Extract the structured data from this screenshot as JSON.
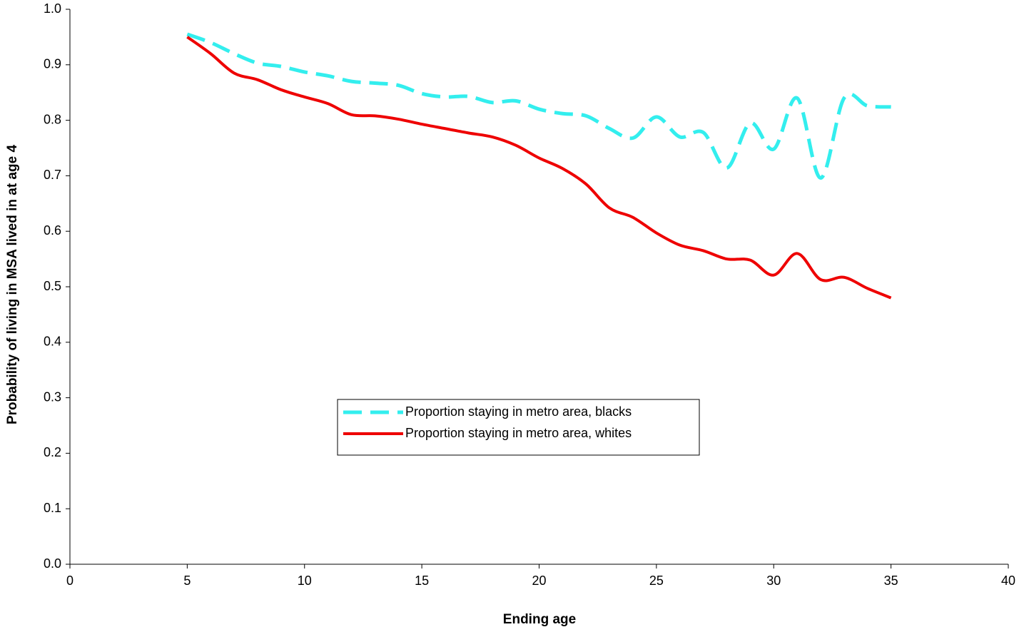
{
  "chart_data": {
    "type": "line",
    "x_label": "Ending age",
    "y_label": "Probability of living in MSA lived in at age 4",
    "x": [
      5,
      6,
      7,
      8,
      9,
      10,
      11,
      12,
      13,
      14,
      15,
      16,
      17,
      18,
      19,
      20,
      21,
      22,
      23,
      24,
      25,
      26,
      27,
      28,
      29,
      30,
      31,
      32,
      33,
      34,
      35
    ],
    "series": [
      {
        "name": "Proportion staying in metro area, blacks",
        "color": "#33eeee",
        "dashed": true,
        "values": [
          0.955,
          0.94,
          0.92,
          0.903,
          0.897,
          0.887,
          0.88,
          0.87,
          0.867,
          0.863,
          0.848,
          0.842,
          0.843,
          0.832,
          0.835,
          0.82,
          0.812,
          0.808,
          0.785,
          0.768,
          0.806,
          0.77,
          0.778,
          0.714,
          0.795,
          0.748,
          0.84,
          0.696,
          0.84,
          0.826,
          0.824
        ]
      },
      {
        "name": "Proportion staying in metro area, whites",
        "color": "#ee0000",
        "dashed": false,
        "values": [
          0.95,
          0.92,
          0.885,
          0.873,
          0.855,
          0.842,
          0.83,
          0.81,
          0.808,
          0.802,
          0.793,
          0.785,
          0.777,
          0.77,
          0.755,
          0.732,
          0.713,
          0.685,
          0.642,
          0.625,
          0.597,
          0.575,
          0.565,
          0.55,
          0.548,
          0.521,
          0.56,
          0.513,
          0.517,
          0.497,
          0.48
        ]
      }
    ],
    "xlim": [
      0,
      40
    ],
    "xticks": [
      0,
      5,
      10,
      15,
      20,
      25,
      30,
      35,
      40
    ],
    "ylim": [
      0,
      1
    ],
    "yticks": [
      {
        "value": 0,
        "label": "0.0"
      },
      0.1,
      0.2,
      0.3,
      0.4,
      0.5,
      0.6,
      0.7,
      0.8,
      0.9,
      {
        "value": 1,
        "label": "1.0"
      }
    ],
    "grid": false
  }
}
